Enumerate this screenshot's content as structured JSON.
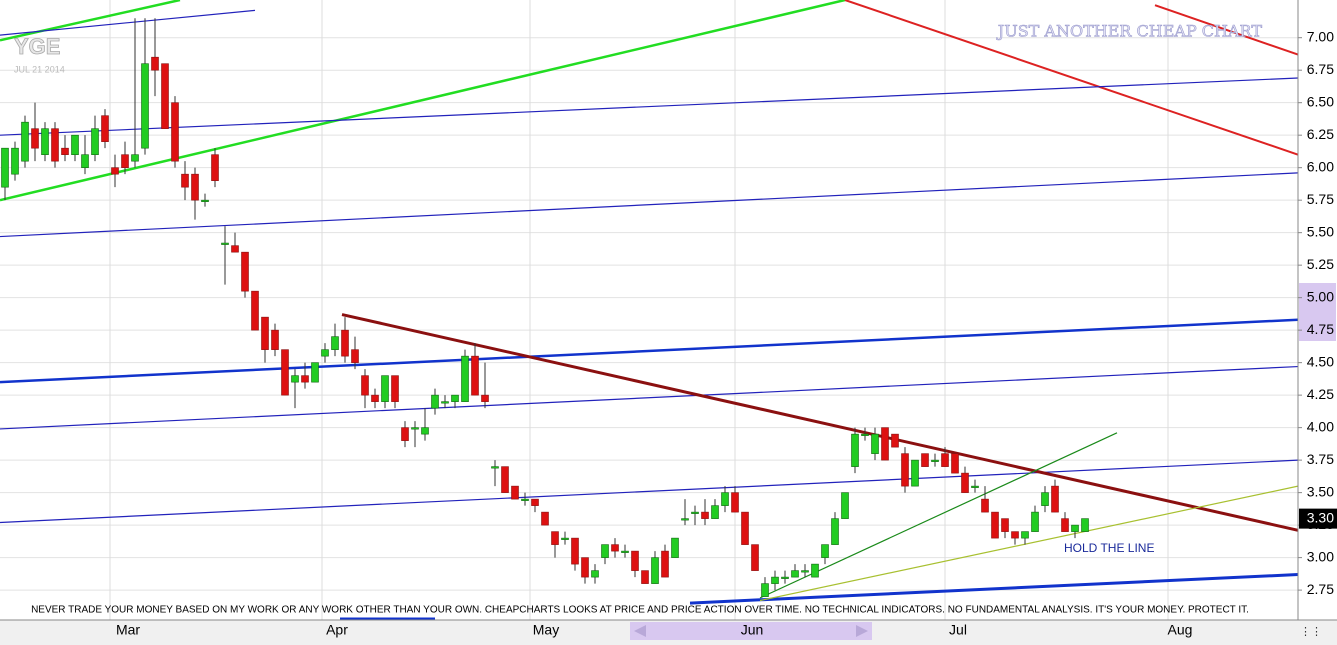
{
  "chart_data": {
    "type": "candlestick",
    "symbol": "YGE",
    "date": "JUL 21 2014",
    "title": "JUST ANOTHER CHEAP CHART",
    "annotation": "HOLD THE LINE",
    "disclaimer": "NEVER TRADE YOUR MONEY BASED ON MY WORK OR ANY WORK OTHER THAN YOUR OWN. CHEAPCHARTS LOOKS AT PRICE AND PRICE ACTION OVER TIME. NO TECHNICAL INDICATORS. NO FUNDAMENTAL ANALYSIS. IT'S YOUR MONEY. PROTECT IT.",
    "months": [
      "Mar",
      "Apr",
      "May",
      "Jun",
      "Jul",
      "Aug"
    ],
    "up_color": "#22cc22",
    "down_color": "#dd1111",
    "xlim": [
      -0.5,
      129.3
    ],
    "ylim": [
      2.52,
      7.29
    ],
    "yticks": [
      {
        "value": 7.0,
        "label": "7.00"
      },
      {
        "value": 6.75,
        "label": "6.75"
      },
      {
        "value": 6.5,
        "label": "6.50"
      },
      {
        "value": 6.25,
        "label": "6.25"
      },
      {
        "value": 6.0,
        "label": "6.00"
      },
      {
        "value": 5.75,
        "label": "5.75"
      },
      {
        "value": 5.5,
        "label": "5.50"
      },
      {
        "value": 5.25,
        "label": "5.25"
      },
      {
        "value": 5.0,
        "label": "5.00"
      },
      {
        "value": 4.75,
        "label": "4.75"
      },
      {
        "value": 4.5,
        "label": "4.50"
      },
      {
        "value": 4.25,
        "label": "4.25"
      },
      {
        "value": 4.0,
        "label": "4.00"
      },
      {
        "value": 3.75,
        "label": "3.75"
      },
      {
        "value": 3.5,
        "label": "3.50"
      },
      {
        "value": 3.25,
        "label": "3.25"
      },
      {
        "value": 3.0,
        "label": "3.00"
      },
      {
        "value": 2.75,
        "label": "2.75"
      }
    ],
    "grid": true,
    "last_price": {
      "value": 3.3,
      "label": "3.30"
    },
    "ohlc": [
      [
        5.85,
        6.15,
        5.75,
        6.15
      ],
      [
        5.95,
        6.2,
        5.9,
        6.15
      ],
      [
        6.05,
        6.4,
        6.0,
        6.35
      ],
      [
        6.3,
        6.5,
        6.05,
        6.15
      ],
      [
        6.1,
        6.35,
        6.05,
        6.3
      ],
      [
        6.3,
        6.35,
        6.0,
        6.05
      ],
      [
        6.15,
        6.25,
        6.05,
        6.1
      ],
      [
        6.1,
        6.25,
        6.05,
        6.25
      ],
      [
        6.0,
        6.25,
        5.95,
        6.1
      ],
      [
        6.1,
        6.4,
        6.05,
        6.3
      ],
      [
        6.4,
        6.45,
        6.15,
        6.2
      ],
      [
        6.0,
        6.1,
        5.85,
        5.95
      ],
      [
        6.1,
        6.2,
        5.95,
        6.0
      ],
      [
        6.05,
        7.15,
        6.0,
        6.1
      ],
      [
        6.15,
        7.15,
        6.1,
        6.8
      ],
      [
        6.85,
        7.15,
        6.55,
        6.75
      ],
      [
        6.8,
        6.8,
        6.3,
        6.3
      ],
      [
        6.5,
        6.55,
        6.0,
        6.05
      ],
      [
        5.95,
        6.05,
        5.75,
        5.85
      ],
      [
        5.95,
        6.0,
        5.6,
        5.75
      ],
      [
        5.75,
        5.8,
        5.7,
        5.75
      ],
      [
        6.1,
        6.15,
        5.85,
        5.9
      ],
      [
        5.42,
        5.55,
        5.1,
        5.42
      ],
      [
        5.4,
        5.5,
        5.35,
        5.35
      ],
      [
        5.35,
        5.35,
        5.0,
        5.05
      ],
      [
        5.05,
        5.05,
        4.75,
        4.75
      ],
      [
        4.85,
        4.85,
        4.5,
        4.6
      ],
      [
        4.75,
        4.8,
        4.55,
        4.6
      ],
      [
        4.6,
        4.6,
        4.25,
        4.25
      ],
      [
        4.35,
        4.45,
        4.15,
        4.4
      ],
      [
        4.4,
        4.5,
        4.3,
        4.35
      ],
      [
        4.35,
        4.5,
        4.35,
        4.5
      ],
      [
        4.55,
        4.65,
        4.5,
        4.6
      ],
      [
        4.6,
        4.8,
        4.55,
        4.7
      ],
      [
        4.75,
        4.85,
        4.5,
        4.55
      ],
      [
        4.6,
        4.7,
        4.45,
        4.5
      ],
      [
        4.4,
        4.45,
        4.15,
        4.25
      ],
      [
        4.25,
        4.3,
        4.15,
        4.2
      ],
      [
        4.2,
        4.4,
        4.15,
        4.4
      ],
      [
        4.4,
        4.4,
        4.15,
        4.2
      ],
      [
        4.0,
        4.05,
        3.85,
        3.9
      ],
      [
        4.0,
        4.05,
        3.85,
        4.0
      ],
      [
        3.95,
        4.15,
        3.9,
        4.0
      ],
      [
        4.15,
        4.3,
        4.1,
        4.25
      ],
      [
        4.2,
        4.25,
        4.15,
        4.2
      ],
      [
        4.2,
        4.25,
        4.15,
        4.25
      ],
      [
        4.2,
        4.6,
        4.2,
        4.55
      ],
      [
        4.55,
        4.65,
        4.25,
        4.25
      ],
      [
        4.25,
        4.5,
        4.15,
        4.2
      ],
      [
        3.7,
        3.75,
        3.55,
        3.7
      ],
      [
        3.7,
        3.7,
        3.5,
        3.5
      ],
      [
        3.55,
        3.55,
        3.45,
        3.45
      ],
      [
        3.45,
        3.5,
        3.4,
        3.45
      ],
      [
        3.45,
        3.45,
        3.35,
        3.4
      ],
      [
        3.35,
        3.35,
        3.25,
        3.25
      ],
      [
        3.2,
        3.2,
        3.0,
        3.1
      ],
      [
        3.15,
        3.2,
        3.1,
        3.15
      ],
      [
        3.15,
        3.15,
        2.9,
        2.95
      ],
      [
        3.0,
        3.0,
        2.8,
        2.85
      ],
      [
        2.85,
        2.95,
        2.8,
        2.9
      ],
      [
        3.0,
        3.1,
        2.95,
        3.1
      ],
      [
        3.1,
        3.15,
        3.0,
        3.05
      ],
      [
        3.05,
        3.1,
        3.0,
        3.05
      ],
      [
        3.05,
        3.05,
        2.85,
        2.9
      ],
      [
        2.9,
        2.9,
        2.8,
        2.8
      ],
      [
        2.8,
        3.05,
        2.8,
        3.0
      ],
      [
        3.05,
        3.1,
        2.85,
        2.85
      ],
      [
        3.0,
        3.15,
        3.0,
        3.15
      ],
      [
        3.3,
        3.45,
        3.25,
        3.3
      ],
      [
        3.35,
        3.4,
        3.25,
        3.35
      ],
      [
        3.35,
        3.45,
        3.25,
        3.3
      ],
      [
        3.3,
        3.45,
        3.3,
        3.4
      ],
      [
        3.4,
        3.55,
        3.35,
        3.5
      ],
      [
        3.5,
        3.55,
        3.35,
        3.35
      ],
      [
        3.35,
        3.35,
        3.1,
        3.1
      ],
      [
        3.1,
        3.1,
        2.9,
        2.9
      ],
      [
        2.7,
        2.85,
        2.7,
        2.8
      ],
      [
        2.8,
        2.9,
        2.75,
        2.85
      ],
      [
        2.85,
        2.9,
        2.8,
        2.85
      ],
      [
        2.85,
        2.95,
        2.85,
        2.9
      ],
      [
        2.9,
        2.95,
        2.85,
        2.9
      ],
      [
        2.85,
        2.95,
        2.85,
        2.95
      ],
      [
        3.0,
        3.1,
        2.95,
        3.1
      ],
      [
        3.1,
        3.35,
        3.1,
        3.3
      ],
      [
        3.3,
        3.5,
        3.3,
        3.5
      ],
      [
        3.7,
        4.0,
        3.65,
        3.95
      ],
      [
        3.95,
        4.0,
        3.9,
        3.95
      ],
      [
        3.8,
        4.0,
        3.75,
        3.95
      ],
      [
        4.0,
        4.0,
        3.75,
        3.75
      ],
      [
        3.95,
        3.95,
        3.85,
        3.85
      ],
      [
        3.8,
        3.85,
        3.5,
        3.55
      ],
      [
        3.55,
        3.75,
        3.55,
        3.75
      ],
      [
        3.8,
        3.8,
        3.7,
        3.7
      ],
      [
        3.75,
        3.8,
        3.7,
        3.75
      ],
      [
        3.8,
        3.85,
        3.7,
        3.7
      ],
      [
        3.8,
        3.8,
        3.65,
        3.65
      ],
      [
        3.65,
        3.7,
        3.5,
        3.5
      ],
      [
        3.55,
        3.6,
        3.5,
        3.55
      ],
      [
        3.45,
        3.55,
        3.35,
        3.35
      ],
      [
        3.35,
        3.35,
        3.15,
        3.15
      ],
      [
        3.3,
        3.3,
        3.15,
        3.2
      ],
      [
        3.2,
        3.2,
        3.1,
        3.15
      ],
      [
        3.15,
        3.2,
        3.1,
        3.2
      ],
      [
        3.2,
        3.4,
        3.2,
        3.35
      ],
      [
        3.4,
        3.55,
        3.35,
        3.5
      ],
      [
        3.55,
        3.6,
        3.35,
        3.35
      ],
      [
        3.3,
        3.35,
        3.2,
        3.2
      ],
      [
        3.2,
        3.25,
        3.15,
        3.25
      ],
      [
        3.2,
        3.3,
        3.2,
        3.3
      ]
    ],
    "trendlines": [
      {
        "color": "#22dd22",
        "width": 2.5,
        "x": [
          -0.5,
          84
        ],
        "y": [
          5.75,
          7.29
        ]
      },
      {
        "color": "#22dd22",
        "width": 2.5,
        "x": [
          -0.5,
          17.5
        ],
        "y": [
          6.98,
          7.29
        ]
      },
      {
        "color": "#dd2222",
        "width": 2,
        "x": [
          84,
          129.3
        ],
        "y": [
          7.29,
          6.1
        ]
      },
      {
        "color": "#dd2222",
        "width": 2,
        "x": [
          115,
          129.3
        ],
        "y": [
          7.25,
          6.87
        ]
      },
      {
        "color": "#2222bb",
        "width": 1.2,
        "x": [
          -0.5,
          25
        ],
        "y": [
          7.02,
          7.21
        ]
      },
      {
        "color": "#2222bb",
        "width": 1.2,
        "x": [
          -0.5,
          129.3
        ],
        "y": [
          6.25,
          6.69
        ]
      },
      {
        "color": "#2222bb",
        "width": 1.2,
        "x": [
          -0.5,
          129.3
        ],
        "y": [
          5.47,
          5.96
        ]
      },
      {
        "color": "#2222bb",
        "width": 1.2,
        "x": [
          -0.5,
          129.3
        ],
        "y": [
          3.99,
          4.47
        ]
      },
      {
        "color": "#2222bb",
        "width": 1.2,
        "x": [
          -0.5,
          129.3
        ],
        "y": [
          3.27,
          3.75
        ]
      },
      {
        "color": "#1133cc",
        "width": 2.5,
        "x": [
          -0.5,
          129.3
        ],
        "y": [
          4.35,
          4.83
        ]
      },
      {
        "color": "#1133cc",
        "width": 3,
        "x": [
          68.5,
          129.3
        ],
        "y": [
          2.65,
          2.87
        ]
      },
      {
        "color": "#1133cc",
        "width": 2.5,
        "x": [
          33.5,
          43
        ],
        "y": [
          2.53,
          2.53
        ]
      },
      {
        "color": "#8b1010",
        "width": 3,
        "x": [
          33.7,
          129.3
        ],
        "y": [
          4.87,
          3.21
        ]
      },
      {
        "color": "#1a8a1a",
        "width": 1.2,
        "x": [
          75.5,
          111.2
        ],
        "y": [
          2.69,
          3.96
        ]
      },
      {
        "color": "#a8c030",
        "width": 1.2,
        "x": [
          75.5,
          129.3
        ],
        "y": [
          2.67,
          3.55
        ]
      }
    ]
  }
}
